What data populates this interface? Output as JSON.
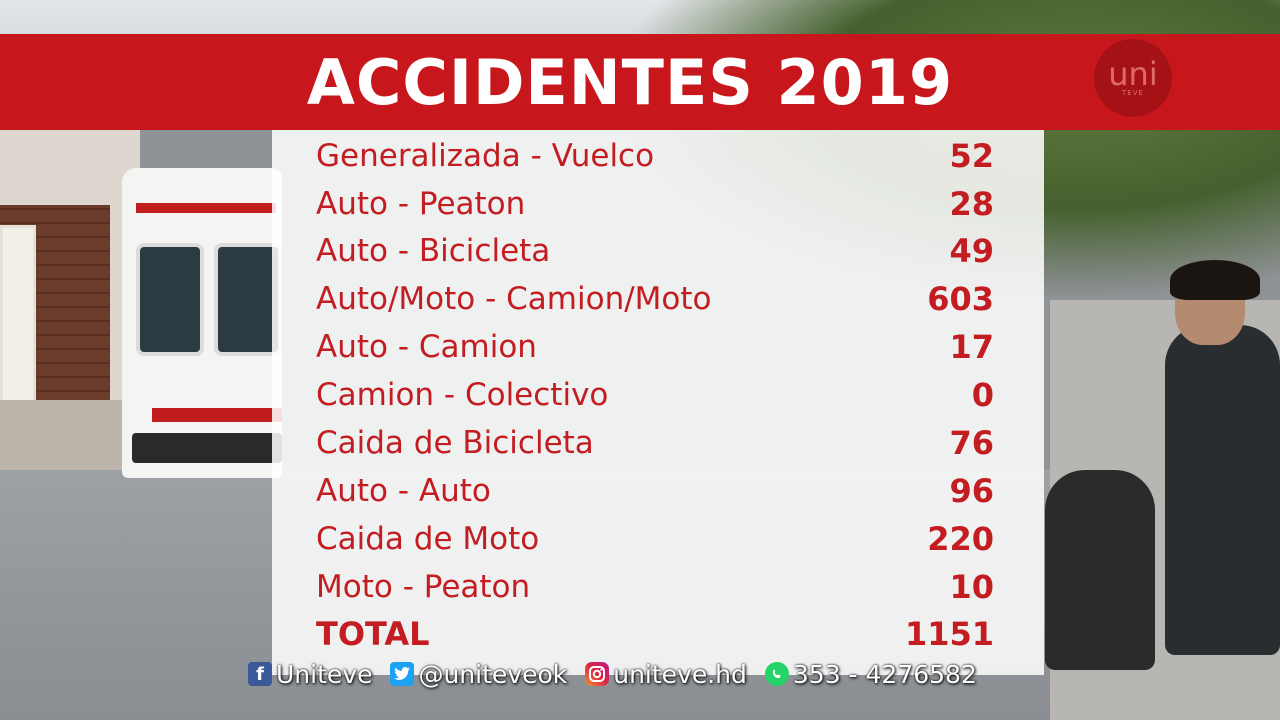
{
  "header": {
    "title": "ACCIDENTES 2019",
    "logo_text": "uni",
    "logo_subtext": "TEVE",
    "color": "#c8171c"
  },
  "table": {
    "text_color": "#c31d22",
    "rows": [
      {
        "label": "Generalizada - Vuelco",
        "value": "52"
      },
      {
        "label": "Auto - Peaton",
        "value": "28"
      },
      {
        "label": "Auto - Bicicleta",
        "value": "49"
      },
      {
        "label": "Auto/Moto - Camion/Moto",
        "value": "603"
      },
      {
        "label": "Auto - Camion",
        "value": "17"
      },
      {
        "label": "Camion - Colectivo",
        "value": "0"
      },
      {
        "label": "Caida de Bicicleta",
        "value": "76"
      },
      {
        "label": "Auto - Auto",
        "value": "96"
      },
      {
        "label": "Caida de Moto",
        "value": "220"
      },
      {
        "label": "Moto - Peaton",
        "value": "10"
      }
    ],
    "total": {
      "label": "TOTAL",
      "value": "1151"
    }
  },
  "social": {
    "facebook": {
      "icon": "facebook-icon",
      "text": "Uniteve"
    },
    "twitter": {
      "icon": "twitter-icon",
      "text": "@uniteveok"
    },
    "instagram": {
      "icon": "instagram-icon",
      "text": "uniteve.hd"
    },
    "whatsapp": {
      "icon": "whatsapp-icon",
      "text": "353 - 4276582"
    }
  }
}
